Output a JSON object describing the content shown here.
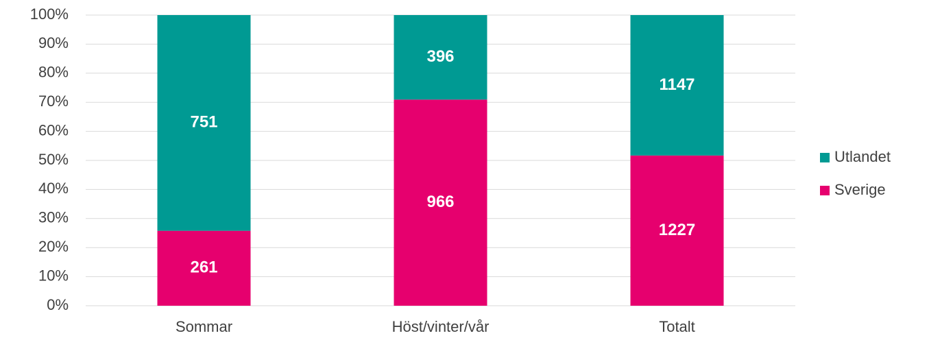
{
  "chart_data": {
    "type": "bar",
    "stacking": "percent",
    "categories": [
      "Sommar",
      "Höst/vinter/vår",
      "Totalt"
    ],
    "series": [
      {
        "name": "Sverige",
        "color": "#e6006e",
        "values": [
          261,
          966,
          1227
        ]
      },
      {
        "name": "Utlandet",
        "color": "#009a93",
        "values": [
          751,
          396,
          1147
        ]
      }
    ],
    "ylim": [
      0,
      100
    ],
    "yticks": [
      {
        "value": 0,
        "label": "0%"
      },
      {
        "value": 10,
        "label": "10%"
      },
      {
        "value": 20,
        "label": "20%"
      },
      {
        "value": 30,
        "label": "30%"
      },
      {
        "value": 40,
        "label": "40%"
      },
      {
        "value": 50,
        "label": "50%"
      },
      {
        "value": 60,
        "label": "60%"
      },
      {
        "value": 70,
        "label": "70%"
      },
      {
        "value": 80,
        "label": "80%"
      },
      {
        "value": 90,
        "label": "90%"
      },
      {
        "value": 100,
        "label": "100%"
      }
    ],
    "grid": true,
    "legend": "right"
  }
}
